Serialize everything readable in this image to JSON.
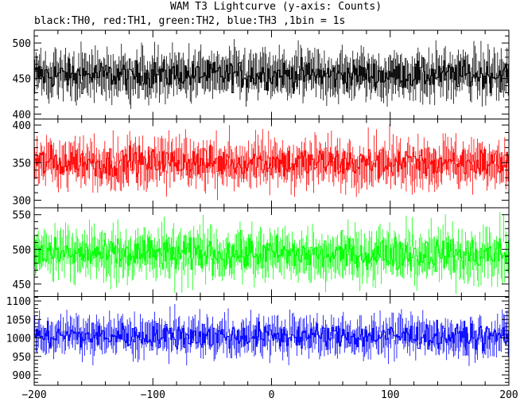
{
  "chart_data": {
    "type": "line",
    "title": "WAM T3 Lightcurve (y-axis: Counts)",
    "subtitle": "black:TH0, red:TH1, green:TH2, blue:TH3 ,1bin = 1s",
    "xlabel": "",
    "ylabel": "",
    "grid": false,
    "x_range": [
      -200,
      200
    ],
    "x_ticks": [
      -200,
      -100,
      0,
      100,
      200
    ],
    "bin_seconds": 1,
    "panels": [
      {
        "name": "TH0",
        "color": "#000000",
        "ylim": [
          393,
          518
        ],
        "yticks": [
          400,
          450,
          500
        ],
        "mean": 455,
        "noise": 18
      },
      {
        "name": "TH1",
        "color": "#ff0000",
        "ylim": [
          290,
          408
        ],
        "yticks": [
          300,
          350,
          400
        ],
        "mean": 350,
        "noise": 19
      },
      {
        "name": "TH2",
        "color": "#00ff00",
        "ylim": [
          432,
          560
        ],
        "yticks": [
          450,
          500,
          550
        ],
        "mean": 493,
        "noise": 22
      },
      {
        "name": "TH3",
        "color": "#0000ff",
        "ylim": [
          872,
          1112
        ],
        "yticks": [
          900,
          950,
          1000,
          1050,
          1100
        ],
        "mean": 1005,
        "noise": 31
      }
    ]
  }
}
